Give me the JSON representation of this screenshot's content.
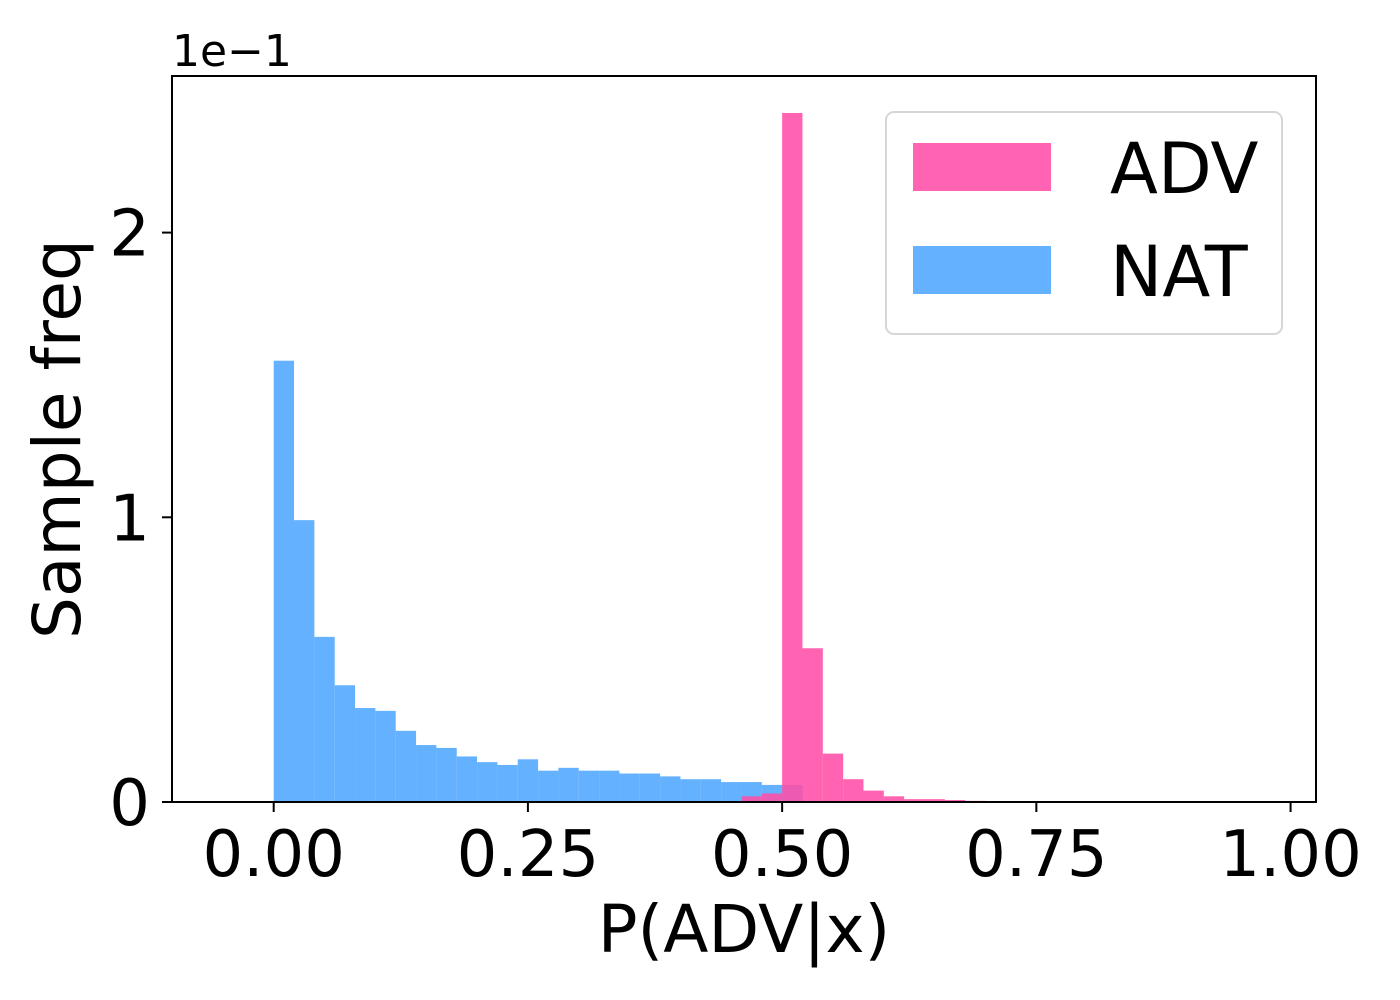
{
  "chart_data": {
    "type": "bar",
    "subtype": "histogram",
    "xlabel": "P(ADV|x)",
    "ylabel": "Sample freq",
    "y_offset_label": "1e−1",
    "xlim": [
      -0.1,
      1.025
    ],
    "ylim": [
      0,
      2.55
    ],
    "x_ticks": [
      0.0,
      0.25,
      0.5,
      0.75,
      1.0
    ],
    "x_tick_labels": [
      "0.00",
      "0.25",
      "0.50",
      "0.75",
      "1.00"
    ],
    "y_ticks": [
      0,
      1,
      2
    ],
    "y_tick_labels": [
      "0",
      "1",
      "2"
    ],
    "legend_position": "top-right",
    "bin_width": 0.02,
    "series": [
      {
        "name": "NAT",
        "color": "#4da6ff",
        "opacity": 0.88,
        "bins_start": 0.0,
        "values": [
          1.55,
          0.99,
          0.58,
          0.41,
          0.33,
          0.32,
          0.25,
          0.2,
          0.19,
          0.16,
          0.14,
          0.13,
          0.15,
          0.11,
          0.12,
          0.11,
          0.11,
          0.1,
          0.1,
          0.09,
          0.08,
          0.08,
          0.07,
          0.07,
          0.06,
          0.06
        ]
      },
      {
        "name": "ADV",
        "color": "#ff4da6",
        "opacity": 0.88,
        "bins_start": 0.46,
        "values": [
          0.02,
          0.03,
          2.42,
          0.54,
          0.17,
          0.08,
          0.04,
          0.02,
          0.01,
          0.01,
          0.007,
          0.004,
          0.003,
          0.002,
          0.002
        ]
      }
    ]
  }
}
